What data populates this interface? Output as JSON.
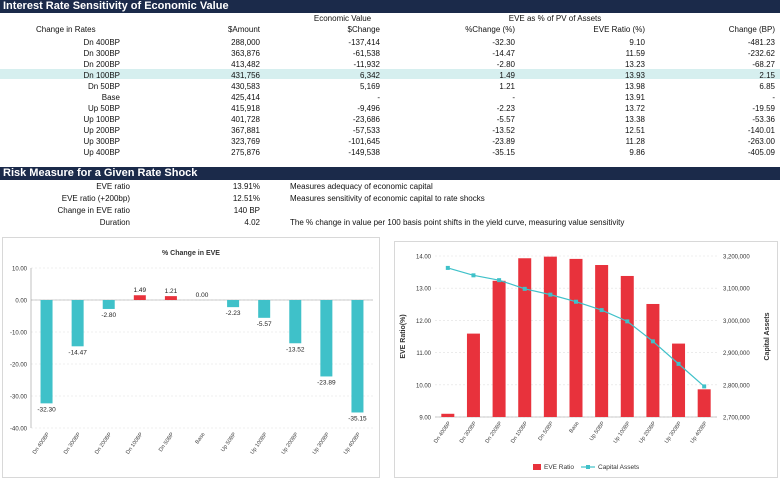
{
  "section1": {
    "title": "Interest Rate Sensitivity of Economic Value",
    "group_headers": {
      "economic_value": "Economic Value",
      "eve_pv": "EVE as % of PV of Assets"
    },
    "columns": [
      "Change in Rates",
      "$Amount",
      "$Change",
      "%Change (%)",
      "EVE Ratio (%)",
      "Change (BP)"
    ],
    "rows": [
      [
        "Dn 400BP",
        "288,000",
        "-137,414",
        "-32.30",
        "9.10",
        "-481.23"
      ],
      [
        "Dn 300BP",
        "363,876",
        "-61,538",
        "-14.47",
        "11.59",
        "-232.62"
      ],
      [
        "Dn 200BP",
        "413,482",
        "-11,932",
        "-2.80",
        "13.23",
        "-68.27"
      ],
      [
        "Dn 100BP",
        "431,756",
        "6,342",
        "1.49",
        "13.93",
        "2.15"
      ],
      [
        "Dn 50BP",
        "430,583",
        "5,169",
        "1.21",
        "13.98",
        "6.85"
      ],
      [
        "Base",
        "425,414",
        "-",
        "-",
        "13.91",
        "-"
      ],
      [
        "Up 50BP",
        "415,918",
        "-9,496",
        "-2.23",
        "13.72",
        "-19.59"
      ],
      [
        "Up 100BP",
        "401,728",
        "-23,686",
        "-5.57",
        "13.38",
        "-53.36"
      ],
      [
        "Up 200BP",
        "367,881",
        "-57,533",
        "-13.52",
        "12.51",
        "-140.01"
      ],
      [
        "Up 300BP",
        "323,769",
        "-101,645",
        "-23.89",
        "11.28",
        "-263.00"
      ],
      [
        "Up 400BP",
        "275,876",
        "-149,538",
        "-35.15",
        "9.86",
        "-405.09"
      ]
    ]
  },
  "section2": {
    "title": "Risk Measure for a Given Rate Shock",
    "rows": [
      {
        "label": "EVE ratio",
        "value": "13.91%",
        "desc": "Measures adequacy of economic capital"
      },
      {
        "label": "EVE ratio (+200bp)",
        "value": "12.51%",
        "desc": "Measures sensitivity of economic capital to rate shocks"
      },
      {
        "label": "Change in EVE ratio",
        "value": "140 BP",
        "desc": ""
      },
      {
        "label": "Duration",
        "value": "4.02",
        "desc": "The % change in value per 100 basis point shifts in the yield curve, measuring value sensitivity"
      }
    ]
  },
  "chart_data": [
    {
      "type": "bar",
      "title": "% Change in EVE",
      "categories": [
        "Dn 400BP",
        "Dn 300BP",
        "Dn 200BP",
        "Dn 100BP",
        "Dn 50BP",
        "Base",
        "Up 50BP",
        "Up 100BP",
        "Up 200BP",
        "Up 300BP",
        "Up 400BP"
      ],
      "values": [
        -32.3,
        -14.47,
        -2.8,
        1.49,
        1.21,
        0.0,
        -2.23,
        -5.57,
        -13.52,
        -23.89,
        -35.15
      ],
      "labels": [
        "-32.30",
        "-14.47",
        "-2.80",
        "1.49",
        "1.21",
        "0.00",
        "-2.23",
        "-5.57",
        "-13.52",
        "-23.89",
        "-35.15"
      ],
      "ylim": [
        -40,
        10
      ],
      "yticks": [
        "10.00",
        "0.00",
        "-10.00",
        "-20.00",
        "-30.00",
        "-40.00"
      ],
      "colors": {
        "positive": "#e8323c",
        "negative": "#3fc1c9"
      }
    },
    {
      "type": "bar+line",
      "categories": [
        "Dn 400BP",
        "Dn 300BP",
        "Dn 200BP",
        "Dn 100BP",
        "Dn 50BP",
        "Base",
        "Up 50BP",
        "Up 100BP",
        "Up 200BP",
        "Up 300BP",
        "Up 400BP"
      ],
      "series": [
        {
          "name": "EVE Ratio",
          "type": "bar",
          "axis": "left",
          "color": "#e8323c",
          "values": [
            9.1,
            11.59,
            13.23,
            13.93,
            13.98,
            13.91,
            13.72,
            13.38,
            12.51,
            11.28,
            9.86
          ]
        },
        {
          "name": "Capital Assets",
          "type": "line",
          "axis": "right",
          "color": "#3fc1c9",
          "values": [
            3163000,
            3140000,
            3125000,
            3098000,
            3080000,
            3058000,
            3032000,
            2997000,
            2935000,
            2865000,
            2795000
          ]
        }
      ],
      "ylabel": "EVE Ratio(%)",
      "y2label": "Capital Assets",
      "ylim": [
        9,
        14
      ],
      "y2lim": [
        2700000,
        3200000
      ],
      "yticks": [
        "14.00",
        "13.00",
        "12.00",
        "11.00",
        "10.00",
        "9.00"
      ],
      "y2ticks": [
        "3,200,000",
        "3,100,000",
        "3,000,000",
        "2,900,000",
        "2,800,000",
        "2,700,000"
      ],
      "legend": "bottom"
    }
  ]
}
